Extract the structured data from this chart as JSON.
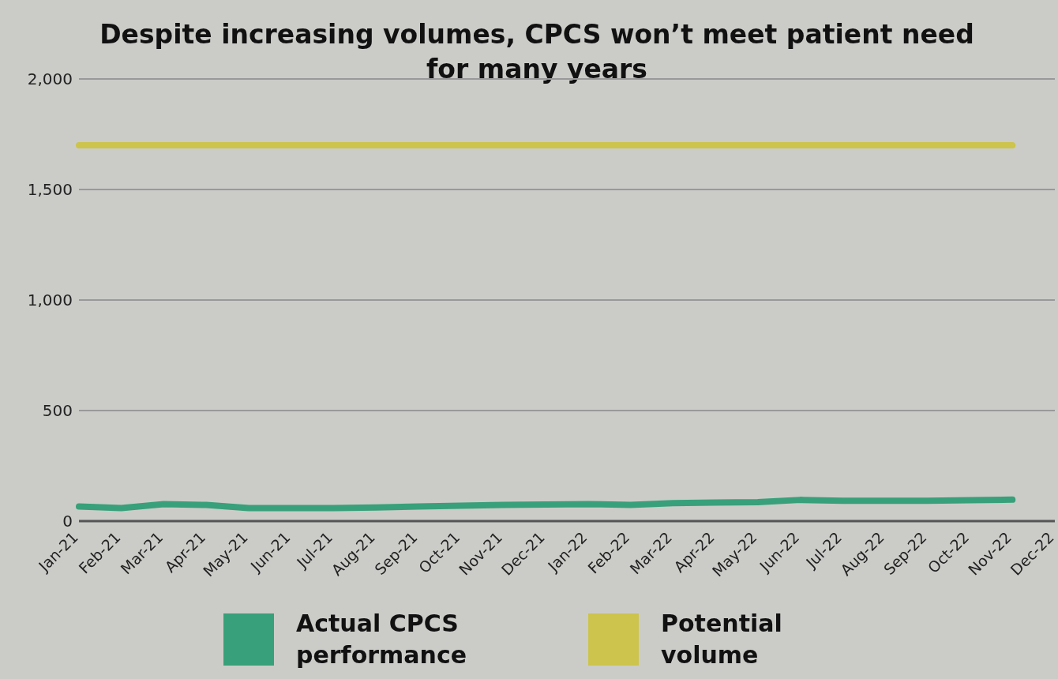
{
  "chart_data": {
    "type": "line",
    "title": "Despite increasing volumes, CPCS won’t meet patient need for many years",
    "categories": [
      "Jan-21",
      "Feb-21",
      "Mar-21",
      "Apr-21",
      "May-21",
      "Jun-21",
      "Jul-21",
      "Aug-21",
      "Sep-21",
      "Oct-21",
      "Nov-21",
      "Dec-21",
      "Jan-22",
      "Feb-22",
      "Mar-22",
      "Apr-22",
      "May-22",
      "Jun-22",
      "Jul-22",
      "Aug-22",
      "Sep-22",
      "Oct-22",
      "Nov-22",
      "Dec-22"
    ],
    "series": [
      {
        "name": "Actual CPCS performance",
        "color": "#38a07a",
        "values": [
          66,
          59,
          77,
          73,
          59,
          59,
          59,
          62,
          66,
          70,
          73,
          75,
          77,
          73,
          81,
          84,
          86,
          96,
          92,
          92,
          92,
          95,
          97,
          null
        ]
      },
      {
        "name": "Potential volume",
        "color": "#ccc44c",
        "values": [
          1700,
          1700,
          1700,
          1700,
          1700,
          1700,
          1700,
          1700,
          1700,
          1700,
          1700,
          1700,
          1700,
          1700,
          1700,
          1700,
          1700,
          1700,
          1700,
          1700,
          1700,
          1700,
          1700,
          null
        ]
      }
    ],
    "ylim": [
      0,
      2000
    ],
    "yticks": [
      0,
      500,
      {
        "value": 1000,
        "label": "1,000"
      },
      {
        "value": 1500,
        "label": "1,500"
      },
      {
        "value": 2000,
        "label": "2,000"
      }
    ],
    "grid": "y",
    "legend": "bottom",
    "marker": "none",
    "line_style": "solid"
  }
}
